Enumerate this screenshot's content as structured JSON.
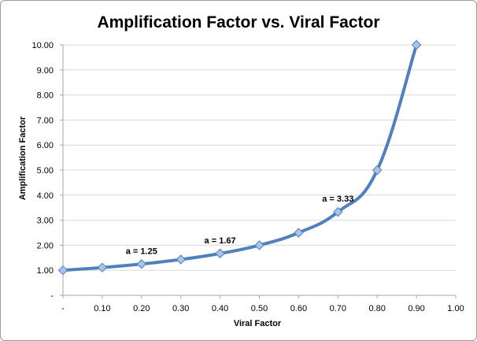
{
  "chart_data": {
    "type": "line",
    "title": "Amplification Factor vs. Viral Factor",
    "xlabel": "Viral Factor",
    "ylabel": "Amplification Factor",
    "x": [
      0,
      0.1,
      0.2,
      0.3,
      0.4,
      0.5,
      0.6,
      0.7,
      0.8,
      0.9
    ],
    "series": [
      {
        "values": [
          1.0,
          1.11,
          1.25,
          1.43,
          1.67,
          2.0,
          2.5,
          3.33,
          5.0,
          10.0
        ]
      }
    ],
    "xlim": [
      0,
      1.0
    ],
    "ylim": [
      0,
      10.0
    ],
    "x_tick_labels": [
      "-",
      "0.10",
      "0.20",
      "0.30",
      "0.40",
      "0.50",
      "0.60",
      "0.70",
      "0.80",
      "0.90",
      "1.00"
    ],
    "y_tick_labels": [
      "-",
      "1.00",
      "2.00",
      "3.00",
      "4.00",
      "5.00",
      "6.00",
      "7.00",
      "8.00",
      "9.00",
      "10.00"
    ],
    "grid": true,
    "legend": "none",
    "annotations": [
      {
        "text": "a = 1.25",
        "x": 0.2,
        "y": 1.25
      },
      {
        "text": "a = 1.67",
        "x": 0.4,
        "y": 1.67
      },
      {
        "text": "a = 3.33",
        "x": 0.7,
        "y": 3.33
      }
    ],
    "colors": {
      "line": "#4f81bd",
      "marker_fill": "#a6c4ec",
      "marker_stroke": "#4f81bd",
      "grid": "#d9d9d9",
      "axis": "#a6a6a6"
    }
  }
}
